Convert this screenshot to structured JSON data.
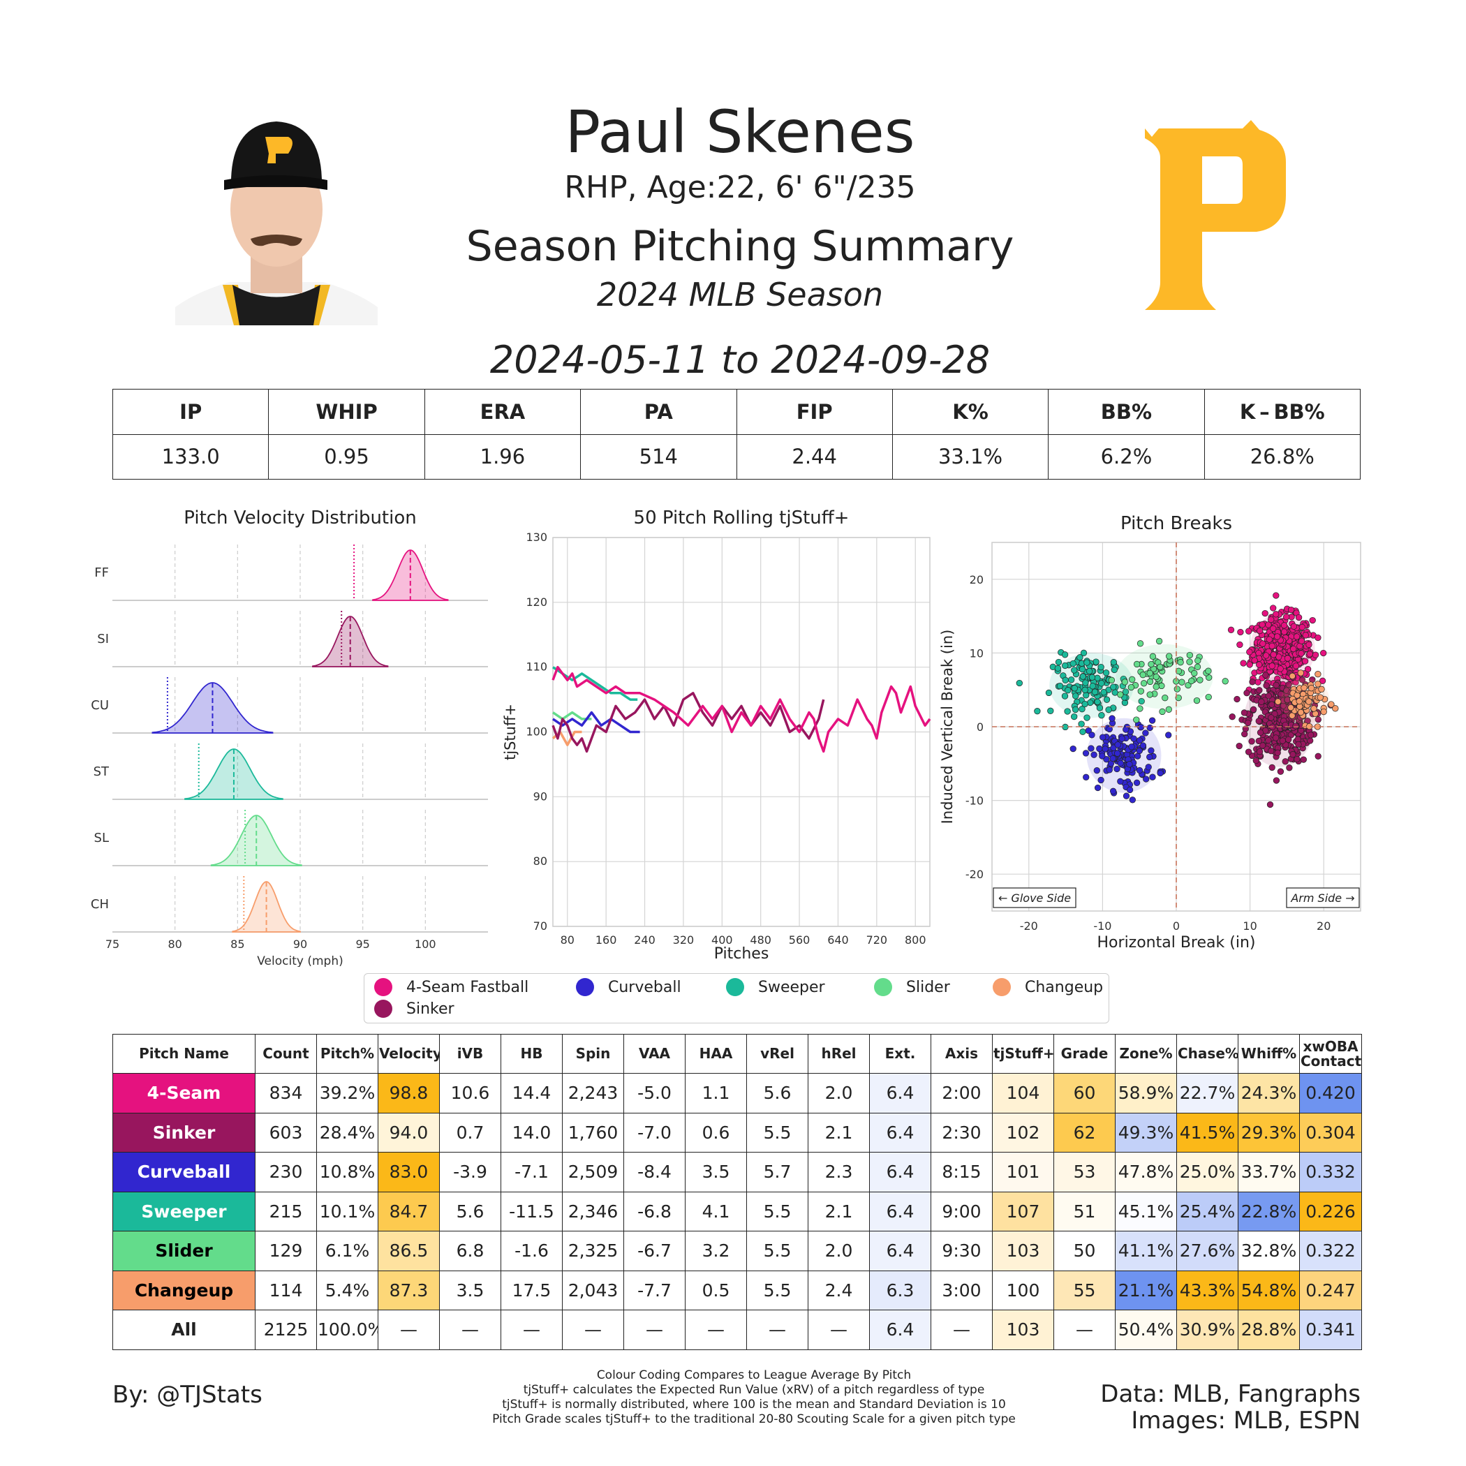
{
  "header": {
    "name": "Paul Skenes",
    "subtitle": "RHP, Age:22, 6' 6\"/235",
    "summary_title": "Season Pitching Summary",
    "season": "2024 MLB Season",
    "date_range": "2024-05-11 to 2024-09-28"
  },
  "stats": {
    "headers": [
      "IP",
      "WHIP",
      "ERA",
      "PA",
      "FIP",
      "K%",
      "BB%",
      "K – BB%"
    ],
    "values": [
      "133.0",
      "0.95",
      "1.96",
      "514",
      "2.44",
      "33.1%",
      "6.2%",
      "26.8%"
    ]
  },
  "colors": {
    "FF": "#e5127f",
    "SI": "#98165e",
    "CU": "#3126cf",
    "ST": "#1bb99a",
    "SL": "#63dc8b",
    "CH": "#f79d6b",
    "logo": "#fdb827"
  },
  "legend": [
    "4-Seam Fastball",
    "Curveball",
    "Sweeper",
    "Slider",
    "Changeup",
    "Sinker"
  ],
  "chart_data": [
    {
      "type": "area",
      "title": "Pitch Velocity Distribution",
      "xlabel": "Velocity (mph)",
      "xlim": [
        75,
        105
      ],
      "xticks": [
        75,
        80,
        85,
        90,
        95,
        100
      ],
      "series": [
        {
          "name": "FF",
          "mean": 98.8,
          "sd": 1.0,
          "league_avg": 94.3
        },
        {
          "name": "SI",
          "mean": 94.0,
          "sd": 1.0,
          "league_avg": 93.3
        },
        {
          "name": "CU",
          "mean": 83.0,
          "sd": 1.6,
          "league_avg": 79.4
        },
        {
          "name": "ST",
          "mean": 84.7,
          "sd": 1.3,
          "league_avg": 81.9
        },
        {
          "name": "SL",
          "mean": 86.5,
          "sd": 1.2,
          "league_avg": 85.6
        },
        {
          "name": "CH",
          "mean": 87.3,
          "sd": 0.9,
          "league_avg": 85.5
        }
      ]
    },
    {
      "type": "line",
      "title": "50 Pitch Rolling tjStuff+",
      "xlabel": "Pitches",
      "ylabel": "tjStuff+",
      "xlim": [
        50,
        830
      ],
      "ylim": [
        70,
        130
      ],
      "xticks": [
        80,
        160,
        240,
        320,
        400,
        480,
        560,
        640,
        720,
        800
      ],
      "yticks": [
        70,
        80,
        90,
        100,
        110,
        120,
        130
      ],
      "series": [
        {
          "name": "FF",
          "x": [
            50,
            60,
            70,
            80,
            90,
            100,
            120,
            140,
            160,
            180,
            200,
            230,
            260,
            300,
            330,
            360,
            380,
            400,
            420,
            440,
            460,
            480,
            500,
            520,
            540,
            560,
            580,
            590,
            600,
            610,
            620,
            640,
            660,
            680,
            700,
            710,
            720,
            730,
            740,
            750,
            760,
            770,
            790,
            800,
            820,
            830
          ],
          "y": [
            108,
            110,
            109,
            108,
            109,
            107,
            108,
            107,
            106,
            107,
            106,
            106,
            105,
            103,
            101,
            104,
            102,
            104,
            100,
            103,
            101,
            104,
            102,
            105,
            102,
            100,
            103,
            102,
            99,
            97,
            100,
            102,
            101,
            105,
            102,
            101,
            99,
            103,
            105,
            107,
            106,
            103,
            107,
            104,
            101,
            102
          ]
        },
        {
          "name": "SI",
          "x": [
            50,
            60,
            70,
            80,
            90,
            100,
            110,
            120,
            140,
            160,
            180,
            200,
            220,
            240,
            260,
            280,
            300,
            320,
            340,
            360,
            380,
            400,
            420,
            440,
            460,
            480,
            500,
            520,
            540,
            560,
            580,
            600,
            610
          ],
          "y": [
            101,
            99,
            102,
            101,
            99,
            98,
            99,
            97,
            101,
            100,
            104,
            102,
            103,
            105,
            102,
            104,
            101,
            105,
            106,
            103,
            101,
            104,
            102,
            104,
            101,
            103,
            101,
            104,
            100,
            101,
            99,
            102,
            105
          ]
        },
        {
          "name": "CU",
          "x": [
            50,
            70,
            90,
            110,
            130,
            150,
            170,
            190,
            210,
            230
          ],
          "y": [
            102,
            101,
            102,
            101,
            103,
            101,
            102,
            101,
            100,
            100
          ]
        },
        {
          "name": "ST",
          "x": [
            50,
            70,
            90,
            110,
            130,
            150,
            170,
            190,
            210,
            225
          ],
          "y": [
            110,
            109,
            108,
            109,
            108,
            107,
            106,
            106,
            105,
            105
          ]
        },
        {
          "name": "SL",
          "x": [
            50,
            70,
            90,
            110,
            130
          ],
          "y": [
            103,
            102,
            103,
            102,
            102
          ]
        },
        {
          "name": "CH",
          "x": [
            50,
            65,
            80,
            95,
            110
          ],
          "y": [
            99,
            100,
            98,
            100,
            100
          ]
        }
      ]
    },
    {
      "type": "scatter",
      "title": "Pitch Breaks",
      "xlabel": "Horizontal Break (in)",
      "ylabel": "Induced Vertical Break (in)",
      "xlim": [
        -25,
        25
      ],
      "ylim": [
        -25,
        25
      ],
      "xticks": [
        -20,
        -10,
        0,
        10,
        20
      ],
      "yticks": [
        -20,
        -10,
        0,
        10,
        20
      ],
      "annotations": [
        "← Glove Side",
        "Arm Side →"
      ],
      "series": [
        {
          "name": "FF",
          "center": [
            14.4,
            10.6
          ],
          "spread": [
            2.0,
            2.2
          ],
          "count": 834
        },
        {
          "name": "SI",
          "center": [
            14.0,
            0.7
          ],
          "spread": [
            2.2,
            2.8
          ],
          "count": 603
        },
        {
          "name": "CU",
          "center": [
            -7.1,
            -3.9
          ],
          "spread": [
            2.3,
            2.3
          ],
          "count": 230
        },
        {
          "name": "ST",
          "center": [
            -11.5,
            5.6
          ],
          "spread": [
            2.6,
            2.0
          ],
          "count": 215
        },
        {
          "name": "SL",
          "center": [
            -1.6,
            6.8
          ],
          "spread": [
            3.0,
            2.0
          ],
          "count": 129
        },
        {
          "name": "CH",
          "center": [
            17.5,
            3.5
          ],
          "spread": [
            1.5,
            1.4
          ],
          "count": 114
        }
      ]
    }
  ],
  "pitch_table": {
    "headers": [
      "Pitch Name",
      "Count",
      "Pitch%",
      "Velocity",
      "iVB",
      "HB",
      "Spin",
      "VAA",
      "HAA",
      "vRel",
      "hRel",
      "Ext.",
      "Axis",
      "tjStuff+",
      "Grade",
      "Zone%",
      "Chase%",
      "Whiff%",
      "xwOBA Contact"
    ],
    "rows": [
      {
        "name": "4-Seam",
        "code": "FF",
        "cells": [
          "834",
          "39.2%",
          "98.8",
          "10.6",
          "14.4",
          "2,243",
          "-5.0",
          "1.1",
          "5.6",
          "2.0",
          "6.4",
          "2:00",
          "104",
          "60",
          "58.9%",
          "22.7%",
          "24.3%",
          "0.420"
        ]
      },
      {
        "name": "Sinker",
        "code": "SI",
        "cells": [
          "603",
          "28.4%",
          "94.0",
          "0.7",
          "14.0",
          "1,760",
          "-7.0",
          "0.6",
          "5.5",
          "2.1",
          "6.4",
          "2:30",
          "102",
          "62",
          "49.3%",
          "41.5%",
          "29.3%",
          "0.304"
        ]
      },
      {
        "name": "Curveball",
        "code": "CU",
        "cells": [
          "230",
          "10.8%",
          "83.0",
          "-3.9",
          "-7.1",
          "2,509",
          "-8.4",
          "3.5",
          "5.7",
          "2.3",
          "6.4",
          "8:15",
          "101",
          "53",
          "47.8%",
          "25.0%",
          "33.7%",
          "0.332"
        ]
      },
      {
        "name": "Sweeper",
        "code": "ST",
        "cells": [
          "215",
          "10.1%",
          "84.7",
          "5.6",
          "-11.5",
          "2,346",
          "-6.8",
          "4.1",
          "5.5",
          "2.1",
          "6.4",
          "9:00",
          "107",
          "51",
          "45.1%",
          "25.4%",
          "22.8%",
          "0.226"
        ]
      },
      {
        "name": "Slider",
        "code": "SL",
        "cells": [
          "129",
          "6.1%",
          "86.5",
          "6.8",
          "-1.6",
          "2,325",
          "-6.7",
          "3.2",
          "5.5",
          "2.0",
          "6.4",
          "9:30",
          "103",
          "50",
          "41.1%",
          "27.6%",
          "32.8%",
          "0.322"
        ]
      },
      {
        "name": "Changeup",
        "code": "CH",
        "cells": [
          "114",
          "5.4%",
          "87.3",
          "3.5",
          "17.5",
          "2,043",
          "-7.7",
          "0.5",
          "5.5",
          "2.4",
          "6.3",
          "3:00",
          "100",
          "55",
          "21.1%",
          "43.3%",
          "54.8%",
          "0.247"
        ]
      },
      {
        "name": "All",
        "code": "ALL",
        "cells": [
          "2125",
          "100.0%",
          "—",
          "—",
          "—",
          "—",
          "—",
          "—",
          "—",
          "—",
          "6.4",
          "—",
          "103",
          "—",
          "50.4%",
          "30.9%",
          "28.8%",
          "0.341"
        ]
      }
    ]
  },
  "footer": {
    "byline": "By: @TJStats",
    "credits_1": "Data: MLB, Fangraphs",
    "credits_2": "Images: MLB, ESPN",
    "notes": [
      "Colour Coding Compares to League Average By Pitch",
      "tjStuff+ calculates the Expected Run Value (xRV) of a pitch regardless of type",
      "tjStuff+ is normally distributed, where 100 is the mean and Standard Deviation is 10",
      "Pitch Grade scales tjStuff+ to the traditional 20-80 Scouting Scale for a given pitch type"
    ]
  }
}
